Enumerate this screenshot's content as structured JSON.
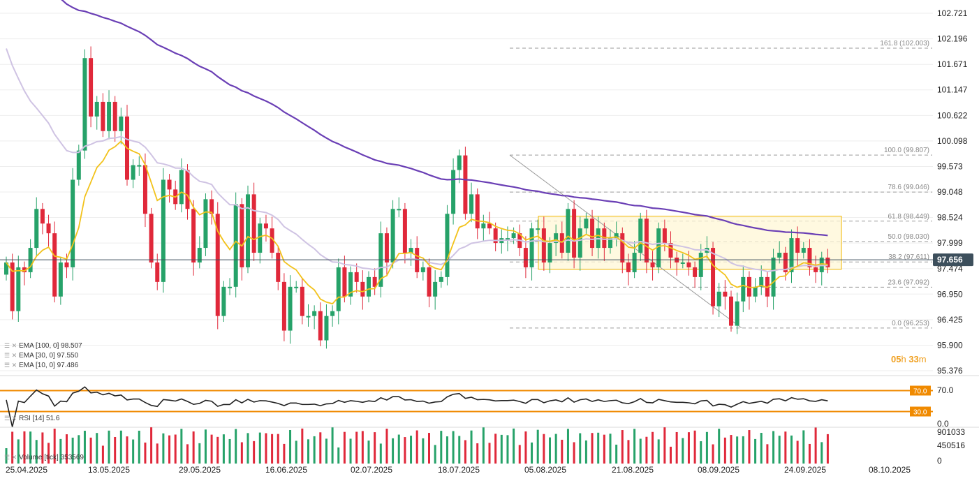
{
  "legend": {
    "ema100": "EMA [100,  0] 98.507",
    "ema30": "EMA [30,  0] 97.550",
    "ema10": "EMA [10,  0] 97.486",
    "rsi": "RSI [14]  51.6",
    "volume": "Volume  [tick]  353569"
  },
  "timer": {
    "hours": "05",
    "h": "h",
    "minutes": "33",
    "m": "m"
  },
  "colors": {
    "up": "#26a269",
    "down": "#e0283a",
    "ema100": "#6a3fb5",
    "ema30": "#cfc3e3",
    "ema10": "#f2c21b",
    "fib": "#9a9a9a",
    "rsi_band": "#f08a00",
    "price_tag": "#3d4f5c"
  },
  "chart_data": {
    "type": "candlestick",
    "price_axis": {
      "ticks": [
        "102.721",
        "102.196",
        "101.671",
        "101.147",
        "100.622",
        "100.098",
        "99.573",
        "99.048",
        "98.524",
        "97.999",
        "97.474",
        "96.950",
        "96.425",
        "95.900",
        "95.376"
      ],
      "range": [
        95.376,
        102.721
      ]
    },
    "last_price": 97.656,
    "last_price_label": "97.656",
    "x_axis_labels": [
      "25.04.2025",
      "13.05.2025",
      "29.05.2025",
      "16.06.2025",
      "02.07.2025",
      "18.07.2025",
      "05.08.2025",
      "21.08.2025",
      "08.09.2025",
      "24.09.2025",
      "08.10.2025"
    ],
    "fib_levels": [
      {
        "label": "161.8 (102.003)",
        "value": 102.003
      },
      {
        "label": "100.0 (99.807)",
        "value": 99.807
      },
      {
        "label": "78.6 (99.046)",
        "value": 99.046
      },
      {
        "label": "61.8 (98.449)",
        "value": 98.449
      },
      {
        "label": "50.0 (98.030)",
        "value": 98.03
      },
      {
        "label": "38.2 (97.611)",
        "value": 97.611
      },
      {
        "label": "23.6 (97.092)",
        "value": 97.092
      },
      {
        "label": "0.0 (96.253)",
        "value": 96.253
      }
    ],
    "range_box": {
      "top": 98.55,
      "bottom": 97.46
    },
    "closes": [
      97.6,
      96.6,
      97.5,
      97.4,
      97.9,
      98.7,
      98.4,
      98.2,
      96.9,
      97.6,
      97.5,
      99.3,
      99.9,
      101.8,
      100.6,
      100.9,
      100.3,
      100.9,
      100.3,
      100.6,
      99.3,
      99.6,
      99.6,
      98.6,
      97.6,
      97.2,
      99.3,
      99.1,
      98.8,
      99.5,
      98.7,
      97.6,
      97.9,
      98.9,
      98.6,
      96.5,
      97.1,
      97.1,
      98.8,
      97.5,
      99.0,
      97.8,
      98.4,
      98.3,
      97.8,
      97.2,
      96.2,
      97.1,
      97.1,
      96.5,
      96.5,
      96.6,
      96.0,
      96.5,
      96.6,
      97.5,
      96.9,
      97.4,
      97.2,
      96.9,
      97.3,
      97.1,
      98.2,
      97.6,
      98.7,
      98.7,
      97.8,
      97.9,
      97.4,
      97.5,
      96.9,
      97.2,
      97.3,
      98.6,
      99.5,
      99.8,
      98.6,
      99.0,
      98.3,
      98.4,
      98.3,
      98.0,
      98.1,
      98.1,
      98.2,
      97.9,
      97.5,
      98.3,
      98.3,
      97.6,
      98.0,
      98.2,
      97.8,
      98.7,
      97.7,
      98.3,
      98.5,
      97.9,
      98.3,
      97.9,
      98.1,
      98.2,
      97.6,
      97.4,
      97.8,
      98.5,
      97.6,
      97.5,
      98.3,
      98.0,
      97.7,
      97.6,
      97.6,
      97.5,
      97.3,
      97.8,
      97.9,
      96.7,
      97.0,
      96.9,
      96.3,
      96.8,
      97.3,
      96.9,
      97.1,
      97.3,
      96.9,
      97.7,
      97.8,
      97.4,
      98.1,
      97.8,
      97.9,
      97.5,
      97.4,
      97.7,
      97.5
    ],
    "rsi": {
      "value": 51.6,
      "overbought": 70.0,
      "oversold": 30.0,
      "ticks": [
        "70.0",
        "0.0"
      ],
      "band_labels": [
        "70.0",
        "30.0"
      ]
    },
    "volume": {
      "value": 353569,
      "ticks": [
        "901033",
        "450516",
        "0"
      ]
    }
  }
}
